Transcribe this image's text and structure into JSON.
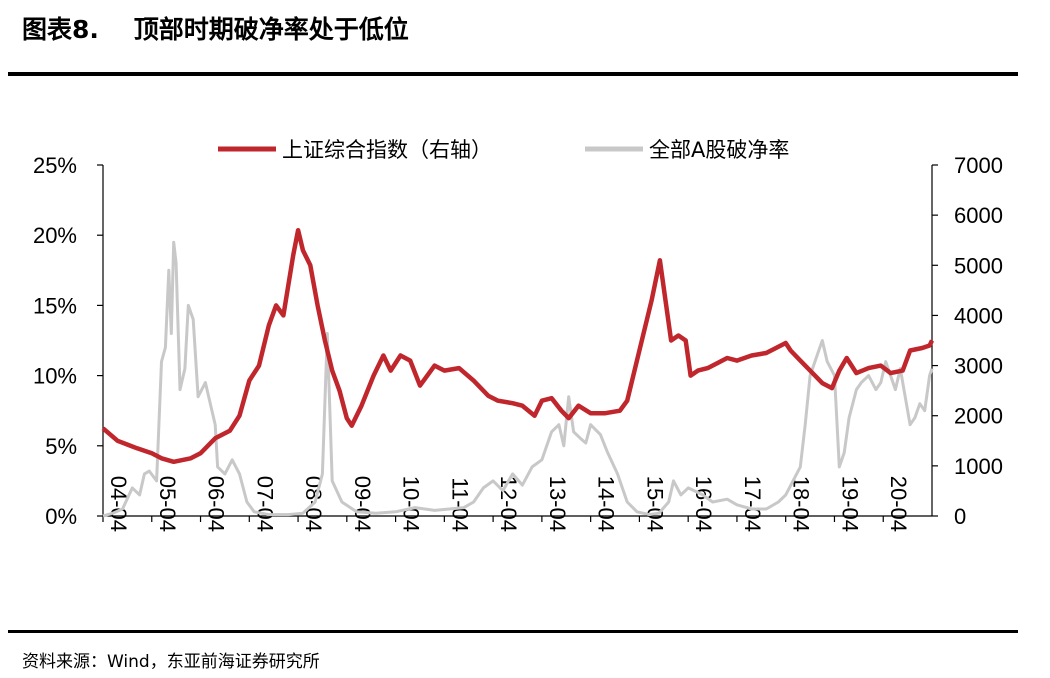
{
  "header": {
    "figure_no": "图表8.",
    "title": "顶部时期破净率处于低位"
  },
  "source": "资料来源：Wind，东亚前海证券研究所",
  "colors": {
    "index": "#C0272D",
    "ratio": "#C8C8C8",
    "axis": "#000000"
  },
  "chart_data": {
    "type": "line",
    "title": "顶部时期破净率处于低位",
    "legend_position": "top-center",
    "grid": false,
    "x_ticks": [
      "04-04",
      "05-04",
      "06-04",
      "07-04",
      "08-04",
      "09-04",
      "10-04",
      "11-04",
      "12-04",
      "13-04",
      "14-04",
      "15-04",
      "16-04",
      "17-04",
      "18-04",
      "19-04",
      "20-04"
    ],
    "x_range": [
      2004.0,
      2021.0
    ],
    "y_left": {
      "ticks": [
        "0%",
        "5%",
        "10%",
        "15%",
        "20%",
        "25%"
      ],
      "range": [
        0,
        25
      ],
      "unit": "%"
    },
    "y_right": {
      "ticks": [
        "0",
        "1000",
        "2000",
        "3000",
        "4000",
        "5000",
        "6000",
        "7000"
      ],
      "range": [
        0,
        7000
      ]
    },
    "series": [
      {
        "name": "上证综合指数（右轴）",
        "axis": "right",
        "color": "#C0272D",
        "points": [
          [
            2004.0,
            1750
          ],
          [
            2004.3,
            1500
          ],
          [
            2004.7,
            1350
          ],
          [
            2005.0,
            1250
          ],
          [
            2005.2,
            1150
          ],
          [
            2005.45,
            1080
          ],
          [
            2005.8,
            1150
          ],
          [
            2006.0,
            1250
          ],
          [
            2006.3,
            1550
          ],
          [
            2006.6,
            1700
          ],
          [
            2006.8,
            2000
          ],
          [
            2007.0,
            2700
          ],
          [
            2007.2,
            3000
          ],
          [
            2007.4,
            3800
          ],
          [
            2007.55,
            4200
          ],
          [
            2007.7,
            4000
          ],
          [
            2007.9,
            5200
          ],
          [
            2008.0,
            5700
          ],
          [
            2008.1,
            5300
          ],
          [
            2008.25,
            5000
          ],
          [
            2008.4,
            4200
          ],
          [
            2008.55,
            3500
          ],
          [
            2008.7,
            2900
          ],
          [
            2008.85,
            2500
          ],
          [
            2009.0,
            1950
          ],
          [
            2009.1,
            1800
          ],
          [
            2009.3,
            2200
          ],
          [
            2009.55,
            2800
          ],
          [
            2009.75,
            3200
          ],
          [
            2009.9,
            2900
          ],
          [
            2010.1,
            3200
          ],
          [
            2010.3,
            3100
          ],
          [
            2010.5,
            2600
          ],
          [
            2010.8,
            3000
          ],
          [
            2011.0,
            2900
          ],
          [
            2011.3,
            2950
          ],
          [
            2011.6,
            2700
          ],
          [
            2011.9,
            2400
          ],
          [
            2012.1,
            2300
          ],
          [
            2012.4,
            2250
          ],
          [
            2012.6,
            2200
          ],
          [
            2012.85,
            2000
          ],
          [
            2013.0,
            2300
          ],
          [
            2013.2,
            2350
          ],
          [
            2013.4,
            2100
          ],
          [
            2013.55,
            1950
          ],
          [
            2013.75,
            2200
          ],
          [
            2014.0,
            2050
          ],
          [
            2014.3,
            2050
          ],
          [
            2014.6,
            2100
          ],
          [
            2014.75,
            2300
          ],
          [
            2015.0,
            3300
          ],
          [
            2015.25,
            4300
          ],
          [
            2015.42,
            5100
          ],
          [
            2015.55,
            4200
          ],
          [
            2015.65,
            3500
          ],
          [
            2015.8,
            3600
          ],
          [
            2015.95,
            3500
          ],
          [
            2016.05,
            2800
          ],
          [
            2016.2,
            2900
          ],
          [
            2016.4,
            2950
          ],
          [
            2016.6,
            3050
          ],
          [
            2016.8,
            3150
          ],
          [
            2017.0,
            3100
          ],
          [
            2017.3,
            3200
          ],
          [
            2017.6,
            3250
          ],
          [
            2017.8,
            3350
          ],
          [
            2018.0,
            3450
          ],
          [
            2018.1,
            3300
          ],
          [
            2018.3,
            3100
          ],
          [
            2018.5,
            2900
          ],
          [
            2018.75,
            2650
          ],
          [
            2018.95,
            2550
          ],
          [
            2019.1,
            2900
          ],
          [
            2019.25,
            3150
          ],
          [
            2019.45,
            2850
          ],
          [
            2019.7,
            2950
          ],
          [
            2019.95,
            3000
          ],
          [
            2020.15,
            2850
          ],
          [
            2020.4,
            2900
          ],
          [
            2020.55,
            3300
          ],
          [
            2020.8,
            3350
          ],
          [
            2020.95,
            3400
          ],
          [
            2021.0,
            3500
          ]
        ]
      },
      {
        "name": "全部A股破净率",
        "axis": "left",
        "color": "#C8C8C8",
        "points": [
          [
            2004.0,
            0.0
          ],
          [
            2004.2,
            0.2
          ],
          [
            2004.4,
            0.5
          ],
          [
            2004.6,
            2.0
          ],
          [
            2004.75,
            1.5
          ],
          [
            2004.85,
            3.0
          ],
          [
            2004.95,
            3.2
          ],
          [
            2005.1,
            2.5
          ],
          [
            2005.2,
            11.0
          ],
          [
            2005.28,
            12.0
          ],
          [
            2005.35,
            17.5
          ],
          [
            2005.4,
            13.0
          ],
          [
            2005.45,
            19.5
          ],
          [
            2005.5,
            18.0
          ],
          [
            2005.58,
            9.0
          ],
          [
            2005.68,
            10.5
          ],
          [
            2005.75,
            15.0
          ],
          [
            2005.85,
            14.0
          ],
          [
            2005.95,
            8.5
          ],
          [
            2006.1,
            9.5
          ],
          [
            2006.2,
            8.0
          ],
          [
            2006.3,
            6.5
          ],
          [
            2006.35,
            3.5
          ],
          [
            2006.5,
            3.0
          ],
          [
            2006.65,
            4.0
          ],
          [
            2006.8,
            3.0
          ],
          [
            2006.95,
            1.0
          ],
          [
            2007.1,
            0.3
          ],
          [
            2007.4,
            0.1
          ],
          [
            2007.8,
            0.1
          ],
          [
            2008.1,
            0.2
          ],
          [
            2008.35,
            1.0
          ],
          [
            2008.5,
            3.0
          ],
          [
            2008.6,
            13.0
          ],
          [
            2008.7,
            2.5
          ],
          [
            2008.9,
            1.0
          ],
          [
            2009.2,
            0.3
          ],
          [
            2009.6,
            0.2
          ],
          [
            2010.0,
            0.3
          ],
          [
            2010.4,
            0.6
          ],
          [
            2010.8,
            0.4
          ],
          [
            2011.1,
            0.5
          ],
          [
            2011.4,
            0.6
          ],
          [
            2011.6,
            1.0
          ],
          [
            2011.8,
            2.0
          ],
          [
            2012.0,
            2.5
          ],
          [
            2012.2,
            1.8
          ],
          [
            2012.4,
            3.0
          ],
          [
            2012.6,
            2.2
          ],
          [
            2012.8,
            3.5
          ],
          [
            2013.0,
            4.0
          ],
          [
            2013.2,
            6.0
          ],
          [
            2013.35,
            6.5
          ],
          [
            2013.45,
            5.0
          ],
          [
            2013.55,
            8.5
          ],
          [
            2013.65,
            6.0
          ],
          [
            2013.8,
            5.5
          ],
          [
            2013.9,
            5.2
          ],
          [
            2014.0,
            6.5
          ],
          [
            2014.2,
            5.8
          ],
          [
            2014.35,
            4.5
          ],
          [
            2014.55,
            3.0
          ],
          [
            2014.75,
            1.0
          ],
          [
            2014.95,
            0.3
          ],
          [
            2015.2,
            0.1
          ],
          [
            2015.4,
            0.2
          ],
          [
            2015.6,
            1.0
          ],
          [
            2015.7,
            2.5
          ],
          [
            2015.85,
            1.5
          ],
          [
            2016.0,
            2.0
          ],
          [
            2016.3,
            1.5
          ],
          [
            2016.5,
            1.0
          ],
          [
            2016.8,
            1.2
          ],
          [
            2017.0,
            0.8
          ],
          [
            2017.3,
            0.5
          ],
          [
            2017.6,
            0.5
          ],
          [
            2017.85,
            1.0
          ],
          [
            2018.0,
            1.5
          ],
          [
            2018.15,
            2.5
          ],
          [
            2018.3,
            3.5
          ],
          [
            2018.4,
            6.5
          ],
          [
            2018.5,
            10.0
          ],
          [
            2018.65,
            11.5
          ],
          [
            2018.75,
            12.5
          ],
          [
            2018.85,
            11.0
          ],
          [
            2019.0,
            10.0
          ],
          [
            2019.1,
            3.5
          ],
          [
            2019.2,
            4.5
          ],
          [
            2019.3,
            7.0
          ],
          [
            2019.45,
            9.0
          ],
          [
            2019.55,
            9.5
          ],
          [
            2019.7,
            10.0
          ],
          [
            2019.85,
            9.0
          ],
          [
            2019.95,
            9.5
          ],
          [
            2020.05,
            11.0
          ],
          [
            2020.15,
            10.0
          ],
          [
            2020.25,
            9.0
          ],
          [
            2020.35,
            10.5
          ],
          [
            2020.45,
            8.5
          ],
          [
            2020.55,
            6.5
          ],
          [
            2020.65,
            7.0
          ],
          [
            2020.75,
            8.0
          ],
          [
            2020.85,
            7.5
          ],
          [
            2020.95,
            10.0
          ],
          [
            2021.0,
            10.5
          ]
        ]
      }
    ]
  }
}
